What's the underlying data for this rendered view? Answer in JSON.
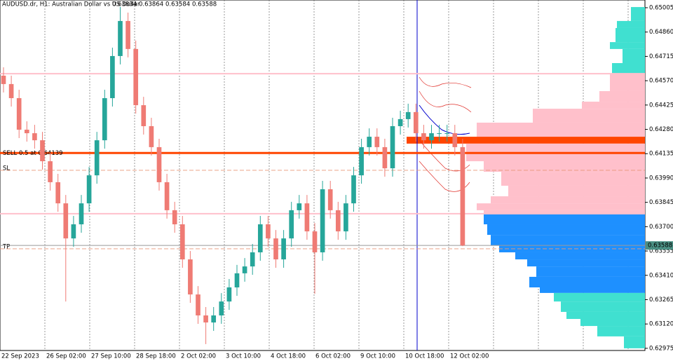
{
  "chart_data": {
    "type": "candlestick",
    "quote": {
      "title": "AUDUSD.dr, H1:  Australian Dollar vs US Dollar",
      "open": 0.63834,
      "high": 0.63864,
      "low": 0.63584,
      "close": 0.63588
    },
    "xlabels": [
      "22 Sep 2023",
      "26 Sep 02:00",
      "27 Sep 10:00",
      "28 Sep 18:00",
      "2 Oct 02:00",
      "3 Oct 10:00",
      "4 Oct 18:00",
      "6 Oct 02:00",
      "9 Oct 10:00",
      "10 Oct 18:00",
      "12 Oct 02:00"
    ],
    "open": [
      0.646,
      0.6455,
      0.64466,
      0.64278,
      0.64257,
      0.64215,
      0.6409,
      0.63965,
      0.63839,
      0.6363,
      0.63714,
      0.63839,
      0.64006,
      0.64215,
      0.64466,
      0.64717,
      0.64926,
      0.64759,
      0.64424,
      0.64299,
      0.64174,
      0.63965,
      0.63798,
      0.63714,
      0.63505,
      0.63296,
      0.63171,
      0.63129,
      0.63171,
      0.63254,
      0.63338,
      0.63422,
      0.63463,
      0.63547,
      0.63714,
      0.6363,
      0.63505,
      0.6363,
      0.63798,
      0.63839,
      0.63672,
      0.63547,
      0.63923,
      0.63798,
      0.63672,
      0.63839,
      0.64006,
      0.64174,
      0.64236,
      0.64174,
      0.64048,
      0.64299,
      0.64341,
      0.64383,
      0.64257,
      0.64215,
      0.64257,
      0.64257,
      0.64257,
      0.64174
    ],
    "high": [
      0.6465,
      0.646,
      0.64516,
      0.64328,
      0.64307,
      0.64265,
      0.6414,
      0.64015,
      0.63889,
      0.63764,
      0.63889,
      0.64056,
      0.64265,
      0.64516,
      0.64767,
      0.6501,
      0.64976,
      0.64809,
      0.64474,
      0.64349,
      0.64224,
      0.64015,
      0.63848,
      0.63764,
      0.63555,
      0.63346,
      0.63221,
      0.63221,
      0.63304,
      0.63388,
      0.63472,
      0.63513,
      0.63597,
      0.63764,
      0.63764,
      0.6368,
      0.6368,
      0.63848,
      0.63889,
      0.63889,
      0.63722,
      0.63973,
      0.63973,
      0.63848,
      0.63889,
      0.64056,
      0.64224,
      0.64286,
      0.64286,
      0.64224,
      0.64349,
      0.64391,
      0.64433,
      0.64433,
      0.64307,
      0.64307,
      0.64307,
      0.64307,
      0.64307,
      0.64224
    ],
    "low": [
      0.645,
      0.64416,
      0.64228,
      0.64207,
      0.64165,
      0.6404,
      0.63915,
      0.63789,
      0.63254,
      0.6358,
      0.63664,
      0.63789,
      0.63956,
      0.64165,
      0.64416,
      0.64667,
      0.64709,
      0.64374,
      0.64249,
      0.64124,
      0.63915,
      0.63748,
      0.63664,
      0.63455,
      0.63246,
      0.63121,
      0.63,
      0.63079,
      0.63121,
      0.63204,
      0.63288,
      0.63372,
      0.63413,
      0.63497,
      0.6358,
      0.63455,
      0.63455,
      0.6358,
      0.63748,
      0.63622,
      0.633,
      0.63497,
      0.63748,
      0.63622,
      0.63622,
      0.63789,
      0.63956,
      0.64124,
      0.64124,
      0.63998,
      0.63998,
      0.64249,
      0.64291,
      0.64207,
      0.64165,
      0.64165,
      0.64207,
      0.64207,
      0.64124,
      0.63584
    ],
    "close": [
      0.6455,
      0.64466,
      0.64278,
      0.64257,
      0.64215,
      0.6409,
      0.63965,
      0.63839,
      0.6363,
      0.63714,
      0.63839,
      0.64006,
      0.64215,
      0.64466,
      0.64717,
      0.64926,
      0.64759,
      0.64424,
      0.64299,
      0.64174,
      0.63965,
      0.63798,
      0.63714,
      0.63505,
      0.63296,
      0.63171,
      0.63129,
      0.63171,
      0.63254,
      0.63338,
      0.63422,
      0.63463,
      0.63547,
      0.63714,
      0.6363,
      0.63505,
      0.6363,
      0.63798,
      0.63839,
      0.63672,
      0.63547,
      0.63923,
      0.63798,
      0.63672,
      0.63839,
      0.64006,
      0.64174,
      0.64236,
      0.64174,
      0.64048,
      0.64299,
      0.64341,
      0.64383,
      0.64257,
      0.64215,
      0.64257,
      0.64257,
      0.64257,
      0.64174,
      0.63588
    ],
    "up_color": "#26a69a",
    "down_color": "#ef7b74",
    "ylim": [
      0.62962,
      0.65051
    ],
    "yticks": [
      0.65005,
      {
        "value": 0.6486,
        "label": "0.64860"
      },
      0.64715,
      {
        "value": 0.6457,
        "label": "0.64570"
      },
      0.64425,
      {
        "value": 0.6428,
        "label": "0.64280"
      },
      0.64135,
      {
        "value": 0.6399,
        "label": "0.63990"
      },
      0.63845,
      {
        "value": 0.637,
        "label": "0.63700"
      },
      0.63555,
      {
        "value": 0.6341,
        "label": "0.63410"
      },
      0.63265,
      {
        "value": 0.6312,
        "label": "0.63120"
      },
      0.62975
    ],
    "levels": [
      {
        "label": "SELL 0.5 at 0.64139",
        "value": 0.64139,
        "color": "#ff4500"
      },
      {
        "label": "SL",
        "value": 0.64036,
        "color": "#e9967a"
      },
      {
        "label": "TP",
        "value": 0.63568,
        "color": "#e9967a"
      }
    ],
    "zone_lines": [
      {
        "value": 0.64612,
        "color": "#ffc0cb"
      },
      {
        "value": 0.63777,
        "color": "#ffc0cb"
      }
    ],
    "profile": {
      "bins": [
        0.65009,
        0.64926,
        0.64884,
        0.648,
        0.64759,
        0.64675,
        0.64612,
        0.64508,
        0.64445,
        0.64403,
        0.6432,
        0.64236,
        0.64195,
        0.6409,
        0.64027,
        0.63944,
        0.63881,
        0.63839,
        0.63798,
        0.63777,
        0.63714,
        0.63651,
        0.63589,
        0.63547,
        0.63505,
        0.63463,
        0.63401,
        0.63338,
        0.63305,
        0.63254,
        0.63192,
        0.6315,
        0.63108,
        0.63046,
        0.62975
      ],
      "values": [
        20,
        40,
        42,
        50,
        32,
        47,
        50,
        65,
        90,
        160,
        240,
        340,
        255,
        230,
        205,
        195,
        220,
        240,
        230,
        230,
        225,
        220,
        208,
        185,
        168,
        155,
        165,
        150,
        130,
        120,
        112,
        92,
        68,
        30
      ],
      "colors": [
        "#40e0d0",
        "#40e0d0",
        "#40e0d0",
        "#40e0d0",
        "#40e0d0",
        "#40e0d0",
        "#ffc0cb",
        "#ffc0cb",
        "#ffc0cb",
        "#ffc0cb",
        "#ffc0cb",
        "#ff4500",
        "#ffc0cb",
        "#ffc0cb",
        "#ffc0cb",
        "#ffc0cb",
        "#ffc0cb",
        "#ffc0cb",
        "#ffc0cb",
        "#1e90ff",
        "#1e90ff",
        "#1e90ff",
        "#1e90ff",
        "#1e90ff",
        "#1e90ff",
        "#1e90ff",
        "#1e90ff",
        "#1e90ff",
        "#40e0d0",
        "#40e0d0",
        "#40e0d0",
        "#40e0d0",
        "#40e0d0",
        "#40e0d0"
      ],
      "xlim": [
        0,
        340
      ]
    }
  }
}
